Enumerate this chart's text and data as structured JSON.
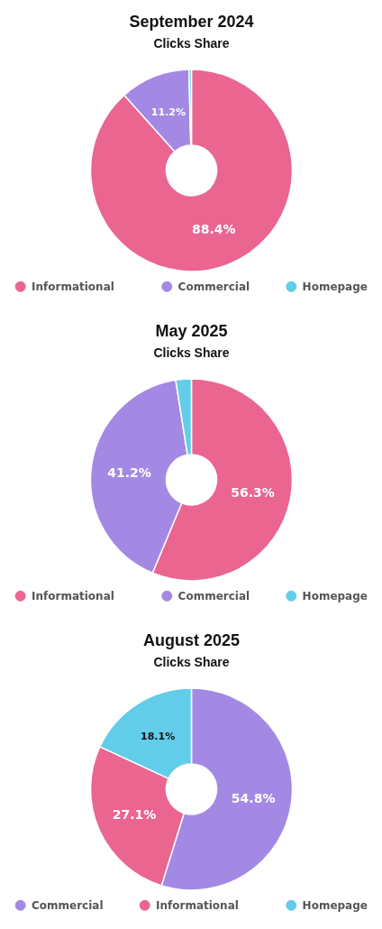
{
  "chart_data": [
    {
      "type": "donut",
      "title": "September 2024",
      "subtitle": "Clicks Share",
      "categories": [
        "Informational",
        "Commercial",
        "Homepage"
      ],
      "values": [
        88.4,
        11.2,
        0.4
      ],
      "colors": [
        "#ea6590",
        "#a389e4",
        "#62cde9"
      ],
      "value_labels": [
        "88.4%",
        "11.2%",
        null
      ],
      "legend": "bottom"
    },
    {
      "type": "donut",
      "title": "May 2025",
      "subtitle": "Clicks Share",
      "categories": [
        "Informational",
        "Commercial",
        "Homepage"
      ],
      "values": [
        56.3,
        41.2,
        2.5
      ],
      "colors": [
        "#ea6590",
        "#a389e4",
        "#62cde9"
      ],
      "value_labels": [
        "56.3%",
        "41.2%",
        null
      ],
      "legend": "bottom"
    },
    {
      "type": "donut",
      "title": "August 2025",
      "subtitle": "Clicks Share",
      "categories": [
        "Commercial",
        "Informational",
        "Homepage"
      ],
      "values": [
        54.8,
        27.1,
        18.1
      ],
      "colors": [
        "#a389e4",
        "#ea6590",
        "#62cde9"
      ],
      "value_labels": [
        "54.8%",
        "27.1%",
        "18.1%"
      ],
      "legend": "bottom"
    }
  ]
}
